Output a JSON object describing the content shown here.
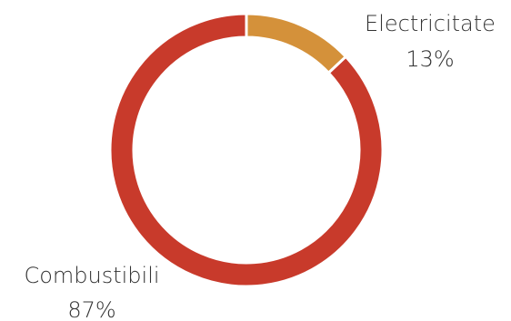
{
  "chart_data": {
    "type": "pie",
    "variant": "donut",
    "title": "",
    "slices": [
      {
        "label": "Electricitate",
        "percent_label": "13%",
        "value": 13,
        "color": "#D4913A"
      },
      {
        "label": "Combustibili",
        "percent_label": "87%",
        "value": 87,
        "color": "#C83A2B"
      }
    ],
    "separator_color": "#ffffff",
    "legend": "none"
  }
}
